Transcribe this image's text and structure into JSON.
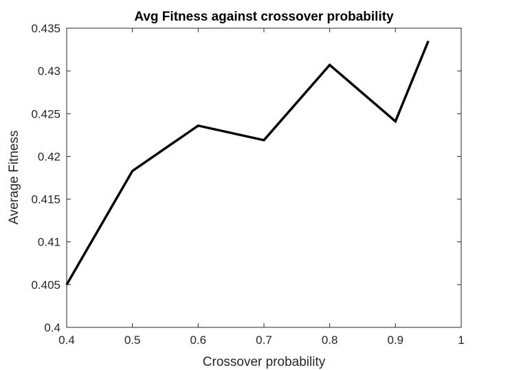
{
  "chart_data": {
    "type": "line",
    "title": "Avg Fitness against crossover probability",
    "xlabel": "Crossover probability",
    "ylabel": "Average Fitness",
    "xlim": [
      0.4,
      1
    ],
    "ylim": [
      0.4,
      0.435
    ],
    "xticks": [
      0.4,
      0.5,
      0.6,
      0.7,
      0.8,
      0.9,
      1
    ],
    "xtick_labels": [
      "0.4",
      "0.5",
      "0.6",
      "0.7",
      "0.8",
      "0.9",
      "1"
    ],
    "yticks": [
      0.4,
      0.405,
      0.41,
      0.415,
      0.42,
      0.425,
      0.43,
      0.435
    ],
    "ytick_labels": [
      "0.4",
      "0.405",
      "0.41",
      "0.415",
      "0.42",
      "0.425",
      "0.43",
      "0.435"
    ],
    "grid": false,
    "series": [
      {
        "x": [
          0.4,
          0.5,
          0.6,
          0.7,
          0.8,
          0.9,
          0.95
        ],
        "y": [
          0.405,
          0.4183,
          0.4236,
          0.4219,
          0.4307,
          0.4241,
          0.4335
        ],
        "color": "#000000"
      }
    ],
    "colors": {
      "axes": "#262626",
      "line": "#000000"
    }
  }
}
